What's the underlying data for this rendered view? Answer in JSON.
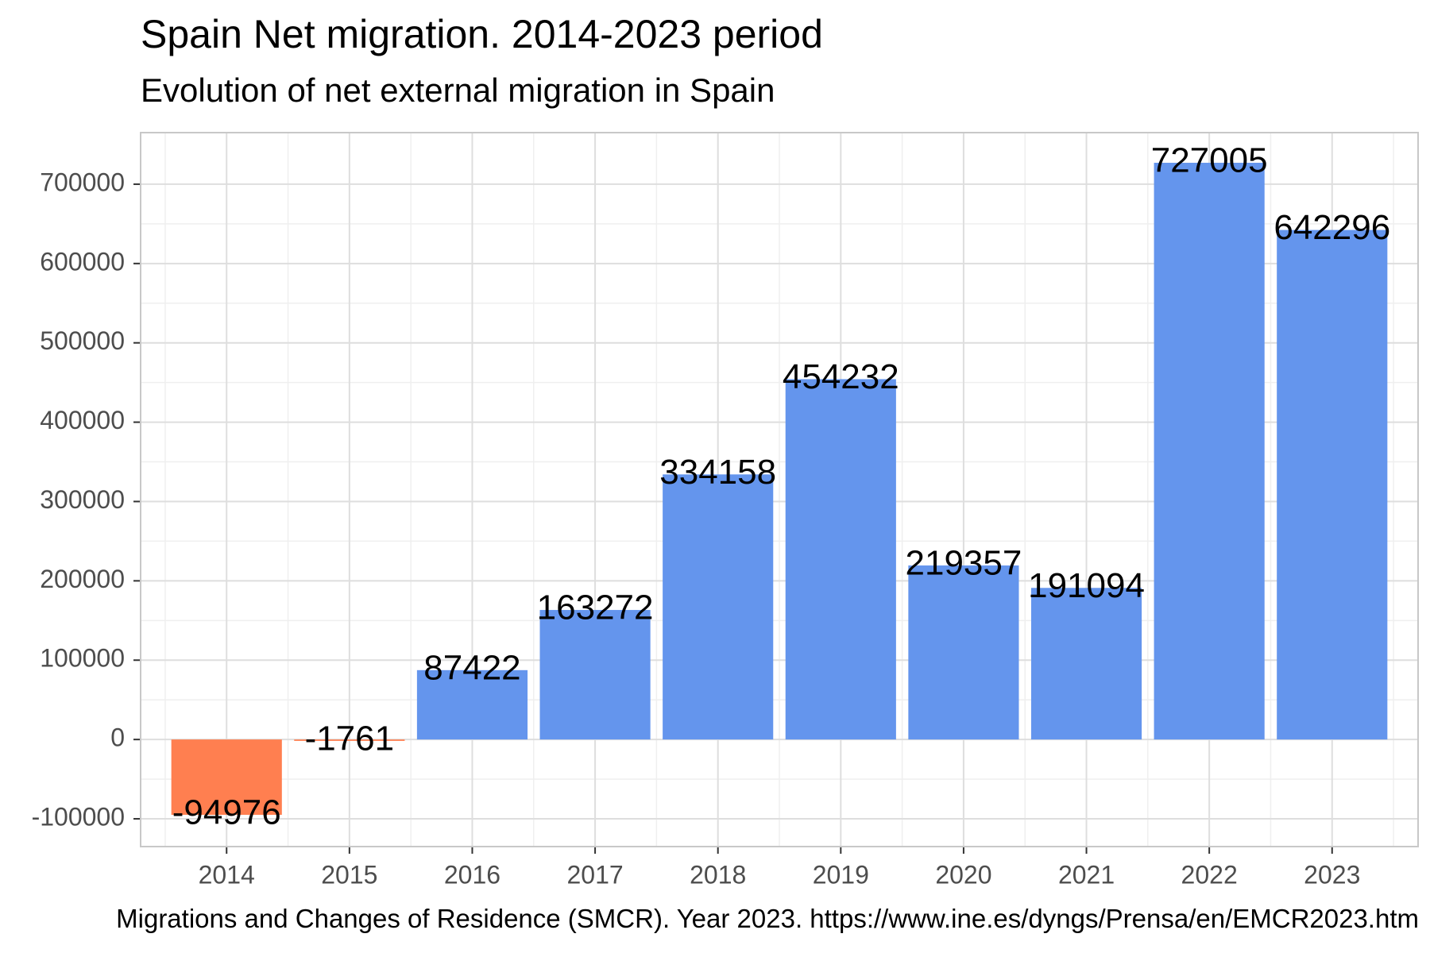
{
  "title": "Spain Net migration. 2014-2023 period",
  "subtitle": "Evolution of net external migration in Spain",
  "caption": "Migrations and Changes of Residence (SMCR). Year 2023. https://www.ine.es/dyngs/Prensa/en/EMCR2023.htm",
  "colors": {
    "positive": "#6495ed",
    "negative": "#ff7f50",
    "grid_major": "#dedede",
    "grid_minor": "#efefef",
    "panel_border": "#c8c8c8"
  },
  "chart_data": {
    "type": "bar",
    "categories": [
      "2014",
      "2015",
      "2016",
      "2017",
      "2018",
      "2019",
      "2020",
      "2021",
      "2022",
      "2023"
    ],
    "values": [
      -94976,
      -1761,
      87422,
      163272,
      334158,
      454232,
      219357,
      191094,
      727005,
      642296
    ],
    "data_labels": [
      "-94976",
      "-1761",
      "87422",
      "163272",
      "334158",
      "454232",
      "219357",
      "191094",
      "727005",
      "642296"
    ],
    "yticks": [
      -100000,
      0,
      100000,
      200000,
      300000,
      400000,
      500000,
      600000,
      700000
    ],
    "ytick_labels": [
      "-100000",
      "0",
      "100000",
      "200000",
      "300000",
      "400000",
      "500000",
      "600000",
      "700000"
    ],
    "ylim": [
      -135000,
      765000
    ],
    "xlabel": "",
    "ylabel": "",
    "grid": true,
    "legend": "none"
  }
}
